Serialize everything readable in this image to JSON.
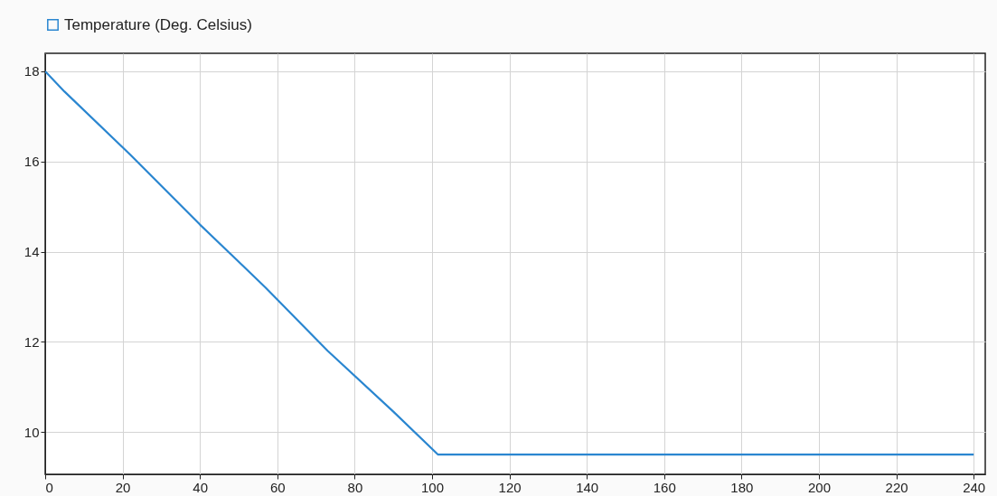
{
  "chart_data": {
    "type": "line",
    "x": [
      0,
      5,
      22,
      40,
      57,
      73,
      90,
      101.5,
      240
    ],
    "series": [
      {
        "name": "Temperature (Deg. Celsius)",
        "color": "#2a86d0",
        "values": [
          18,
          17.55,
          16.15,
          14.6,
          13.2,
          11.8,
          10.45,
          9.5,
          9.5
        ]
      }
    ],
    "xlim": [
      0,
      243
    ],
    "xticks": [
      0,
      20,
      40,
      60,
      80,
      100,
      120,
      140,
      160,
      180,
      200,
      220,
      240
    ],
    "ylim": [
      9.06,
      18.4
    ],
    "yticks": [
      10,
      12,
      14,
      16,
      18
    ],
    "grid": true,
    "legend": "top left",
    "marker": "none",
    "line_style": "solid"
  }
}
